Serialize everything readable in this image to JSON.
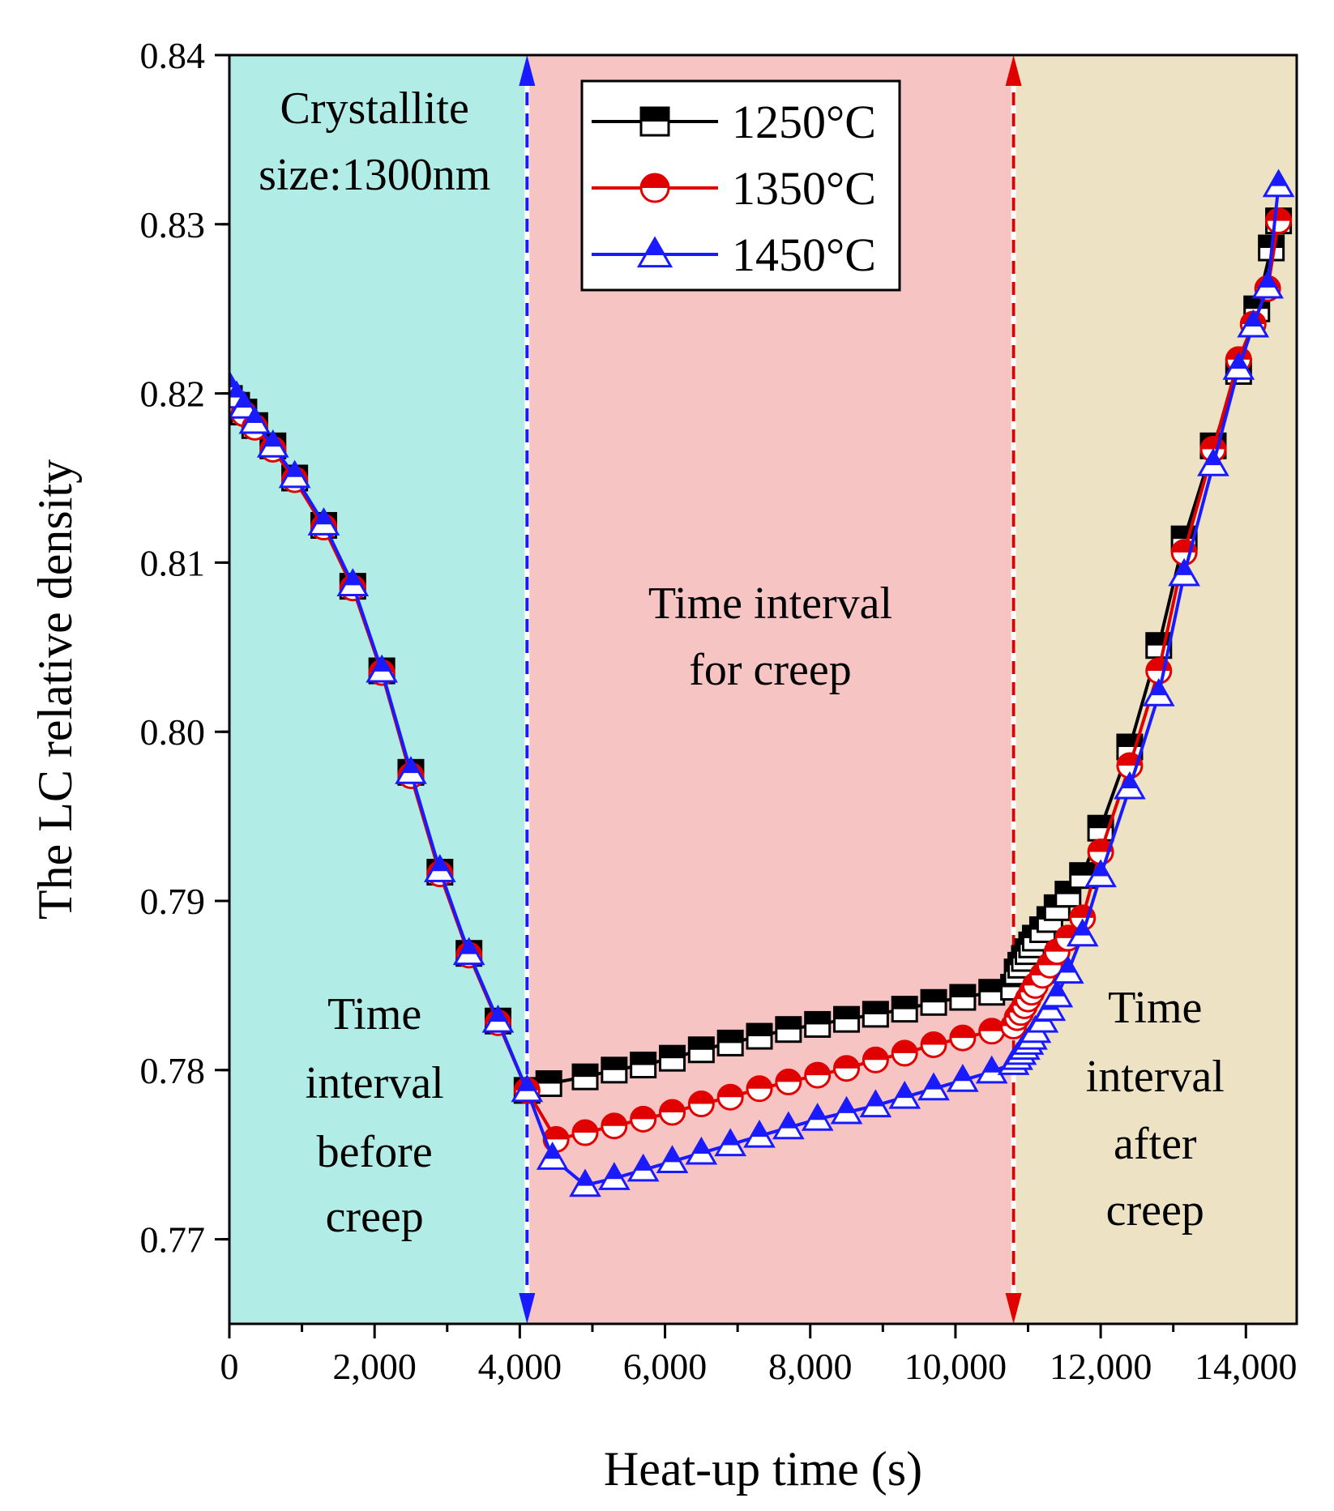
{
  "chart_data": {
    "type": "line",
    "title": "",
    "xlabel": "Heat-up time (s)",
    "ylabel": "The LC relative density",
    "xlim": [
      0,
      14700
    ],
    "ylim": [
      0.765,
      0.84
    ],
    "x_ticks": [
      0,
      2000,
      4000,
      6000,
      8000,
      10000,
      12000,
      14000
    ],
    "x_tick_labels": [
      "0",
      "2,000",
      "4,000",
      "6,000",
      "8,000",
      "10,000",
      "12,000",
      "14,000"
    ],
    "y_ticks": [
      0.77,
      0.78,
      0.79,
      0.8,
      0.81,
      0.82,
      0.83,
      0.84
    ],
    "y_tick_labels": [
      "0.77",
      "0.78",
      "0.79",
      "0.80",
      "0.81",
      "0.82",
      "0.83",
      "0.84"
    ],
    "regions": [
      {
        "name": "before-creep",
        "x_start": 0,
        "x_end": 4100,
        "color": "#b2ece6",
        "label_lines": [
          "Time",
          "interval",
          "before",
          "creep"
        ]
      },
      {
        "name": "creep",
        "x_start": 4100,
        "x_end": 10800,
        "color": "#f7c4c4",
        "label_lines": [
          "Time interval",
          "for creep"
        ]
      },
      {
        "name": "after-creep",
        "x_start": 10800,
        "x_end": 14700,
        "color": "#ede2c4",
        "label_lines": [
          "Time",
          "interval",
          "after",
          "creep"
        ]
      }
    ],
    "boundaries": [
      {
        "x": 4100,
        "color": "#1a1aff"
      },
      {
        "x": 10800,
        "color": "#e00000"
      }
    ],
    "annotation_lines": [
      "Crystallite",
      "size:1300nm"
    ],
    "legend_position": "top-center",
    "series": [
      {
        "name": "1250°C",
        "color": "#000000",
        "marker": "square",
        "x": [
          0,
          100,
          200,
          350,
          600,
          900,
          1300,
          1700,
          2100,
          2500,
          2900,
          3300,
          3700,
          4100,
          4400,
          4900,
          5300,
          5700,
          6100,
          6500,
          6900,
          7300,
          7700,
          8100,
          8500,
          8900,
          9300,
          9700,
          10100,
          10500,
          10800,
          10850,
          10900,
          10950,
          11000,
          11050,
          11100,
          11200,
          11300,
          11400,
          11550,
          11750,
          12000,
          12400,
          12800,
          13150,
          13550,
          13900,
          14150,
          14350,
          14450
        ],
        "y": [
          0.8197,
          0.8193,
          0.8189,
          0.8181,
          0.8169,
          0.815,
          0.8122,
          0.8086,
          0.8036,
          0.7976,
          0.7917,
          0.7869,
          0.7829,
          0.7788,
          0.7792,
          0.7796,
          0.78,
          0.7803,
          0.7807,
          0.7812,
          0.7816,
          0.782,
          0.7824,
          0.7827,
          0.783,
          0.7833,
          0.7836,
          0.784,
          0.7843,
          0.7846,
          0.7849,
          0.7858,
          0.7862,
          0.7866,
          0.787,
          0.7874,
          0.7878,
          0.7883,
          0.7889,
          0.7896,
          0.7904,
          0.7915,
          0.7943,
          0.7991,
          0.8051,
          0.8114,
          0.8169,
          0.8213,
          0.825,
          0.8286,
          0.8302
        ]
      },
      {
        "name": "1350°C",
        "color": "#e00000",
        "marker": "circle",
        "x": [
          0,
          100,
          200,
          350,
          600,
          900,
          1300,
          1700,
          2100,
          2500,
          2900,
          3300,
          3700,
          4100,
          4500,
          4900,
          5300,
          5700,
          6100,
          6500,
          6900,
          7300,
          7700,
          8100,
          8500,
          8900,
          9300,
          9700,
          10100,
          10500,
          10800,
          10850,
          10900,
          10950,
          11000,
          11050,
          11100,
          11200,
          11300,
          11400,
          11550,
          11750,
          12000,
          12400,
          12800,
          13150,
          13550,
          13900,
          14100,
          14300,
          14450
        ],
        "y": [
          0.8198,
          0.8193,
          0.8188,
          0.818,
          0.8167,
          0.8149,
          0.8121,
          0.8085,
          0.8035,
          0.7974,
          0.7916,
          0.7868,
          0.7828,
          0.7788,
          0.7759,
          0.7763,
          0.7767,
          0.7771,
          0.7775,
          0.778,
          0.7784,
          0.7789,
          0.7793,
          0.7797,
          0.7801,
          0.7806,
          0.781,
          0.7815,
          0.7819,
          0.7823,
          0.7826,
          0.7831,
          0.7834,
          0.7838,
          0.7842,
          0.7846,
          0.785,
          0.7856,
          0.7862,
          0.787,
          0.7878,
          0.789,
          0.7929,
          0.798,
          0.8036,
          0.8106,
          0.8167,
          0.822,
          0.8241,
          0.8262,
          0.8302
        ]
      },
      {
        "name": "1450°C",
        "color": "#1a1aff",
        "marker": "triangle",
        "x": [
          0,
          100,
          200,
          350,
          600,
          900,
          1300,
          1700,
          2100,
          2500,
          2900,
          3300,
          3700,
          4100,
          4450,
          4900,
          5300,
          5700,
          6100,
          6500,
          6900,
          7300,
          7700,
          8100,
          8500,
          8900,
          9300,
          9700,
          10100,
          10500,
          10800,
          10850,
          10900,
          10950,
          11000,
          11050,
          11100,
          11200,
          11300,
          11400,
          11550,
          11750,
          12000,
          12400,
          12800,
          13150,
          13550,
          13900,
          14100,
          14300,
          14450
        ],
        "y": [
          0.8204,
          0.8198,
          0.8192,
          0.8183,
          0.8169,
          0.8151,
          0.8123,
          0.8087,
          0.8036,
          0.7976,
          0.7918,
          0.7869,
          0.7829,
          0.7788,
          0.7748,
          0.7732,
          0.7736,
          0.7741,
          0.7746,
          0.7751,
          0.7756,
          0.7761,
          0.7766,
          0.7771,
          0.7775,
          0.7779,
          0.7784,
          0.7789,
          0.7794,
          0.7799,
          0.7804,
          0.7807,
          0.781,
          0.7813,
          0.7816,
          0.7819,
          0.7823,
          0.7829,
          0.7836,
          0.7844,
          0.7858,
          0.788,
          0.7915,
          0.7967,
          0.8022,
          0.8093,
          0.8158,
          0.8215,
          0.824,
          0.8263,
          0.8323
        ]
      }
    ]
  }
}
